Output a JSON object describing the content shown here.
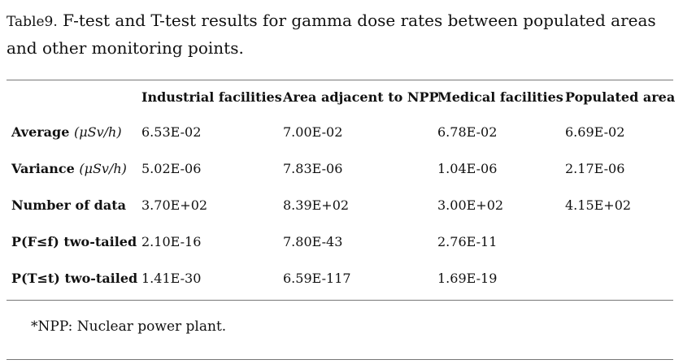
{
  "caption": {
    "label": "Table9.",
    "text": " F-test and T-test results for gamma dose rates between populated areas and other monitoring points."
  },
  "table": {
    "headers": [
      "",
      "Industrial facilities",
      "Area adjacent to NPP",
      "Medical facilities",
      "Populated area"
    ],
    "rows": [
      {
        "label": "Average",
        "unit": "(μSv/h)",
        "cells": [
          "6.53E-02",
          "7.00E-02",
          "6.78E-02",
          "6.69E-02"
        ]
      },
      {
        "label": "Variance",
        "unit": "(μSv/h)",
        "cells": [
          "5.02E-06",
          "7.83E-06",
          "1.04E-06",
          "2.17E-06"
        ]
      },
      {
        "label": "Number of data",
        "unit": "",
        "cells": [
          "3.70E+02",
          "8.39E+02",
          "3.00E+02",
          "4.15E+02"
        ]
      },
      {
        "label": "P(F≤f) two-tailed",
        "unit": "",
        "cells": [
          "2.10E-16",
          "7.80E-43",
          "2.76E-11",
          ""
        ]
      },
      {
        "label": "P(T≤t) two-tailed",
        "unit": "",
        "cells": [
          "1.41E-30",
          "6.59E-117",
          "1.69E-19",
          ""
        ]
      }
    ]
  },
  "footnote": "*NPP: Nuclear power plant."
}
